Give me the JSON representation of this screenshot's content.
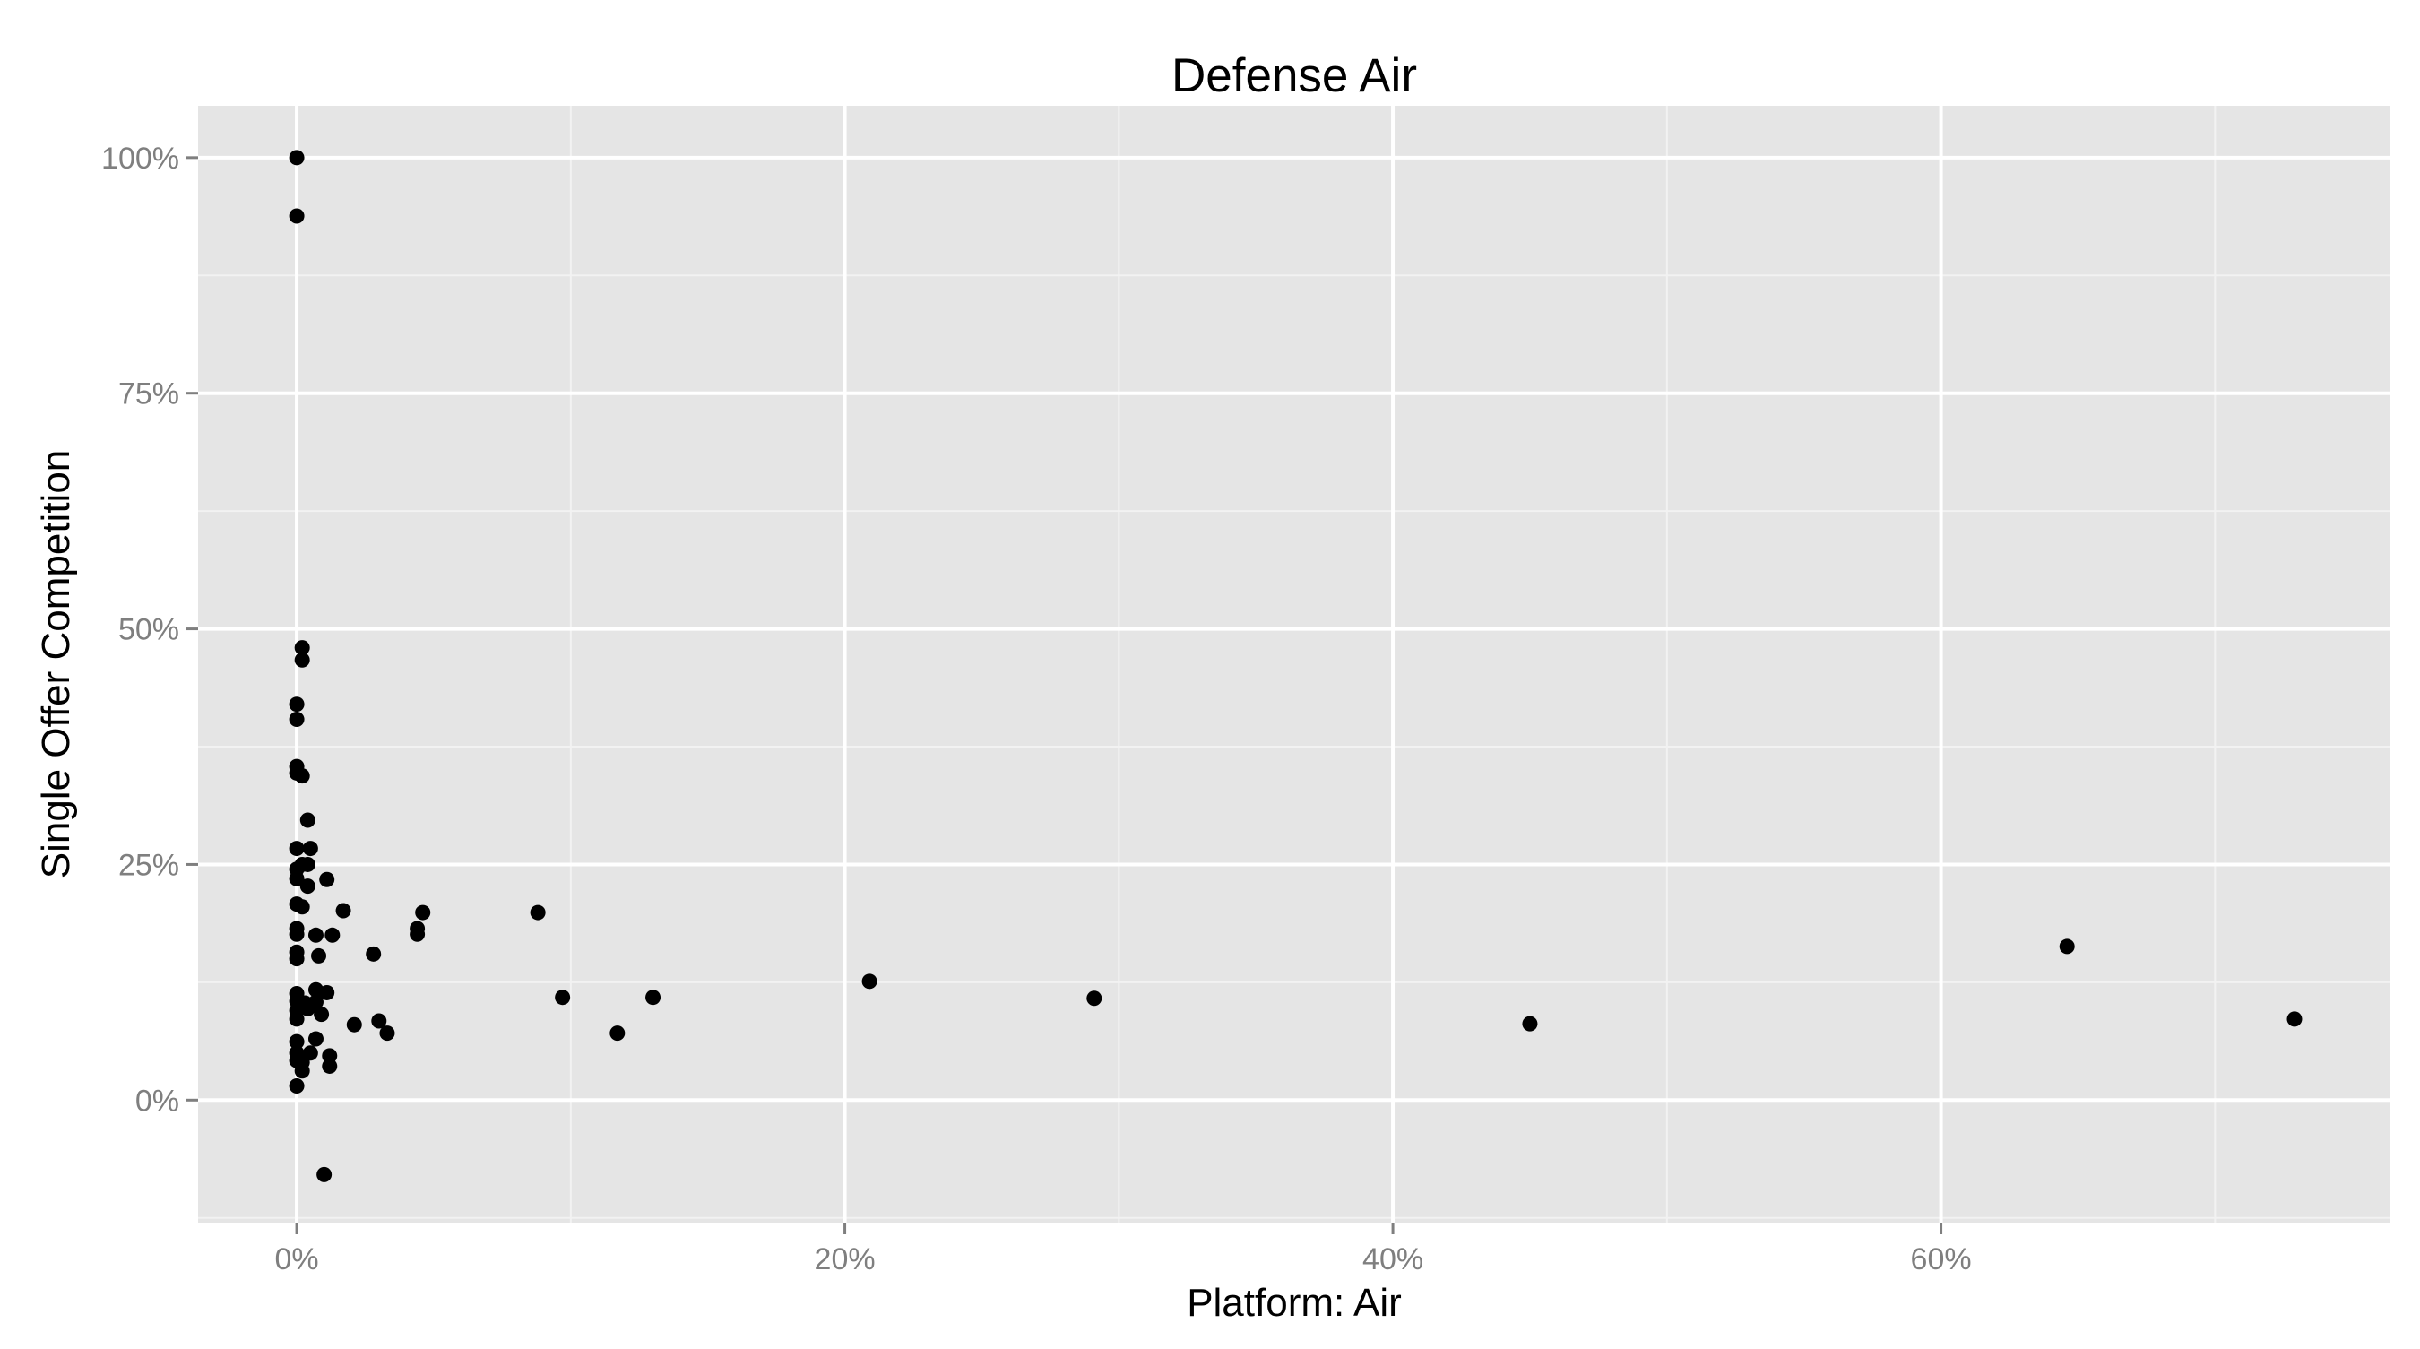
{
  "chart_data": {
    "type": "scatter",
    "title": "Defense Air",
    "xlabel": "Platform: Air",
    "ylabel": "Single Offer Competition",
    "xlim": [
      -0.036,
      0.764
    ],
    "ylim": [
      -0.13,
      1.055
    ],
    "x_ticks": [
      0,
      0.2,
      0.4,
      0.6
    ],
    "x_tick_labels": [
      "0%",
      "20%",
      "40%",
      "60%"
    ],
    "y_ticks": [
      0,
      0.25,
      0.5,
      0.75,
      1.0
    ],
    "y_tick_labels": [
      "0%",
      "25%",
      "50%",
      "75%",
      "100%"
    ],
    "grid": true,
    "panel_color": "#e5e5e5",
    "grid_major_color": "#ffffff",
    "grid_minor_color": "#f2f2f2",
    "point_color": "#000000",
    "points": [
      {
        "x": 0.0,
        "y": 1.0
      },
      {
        "x": 0.0,
        "y": 0.938
      },
      {
        "x": 0.002,
        "y": 0.48
      },
      {
        "x": 0.002,
        "y": 0.467
      },
      {
        "x": 0.0,
        "y": 0.42
      },
      {
        "x": 0.0,
        "y": 0.404
      },
      {
        "x": 0.0,
        "y": 0.354
      },
      {
        "x": 0.0,
        "y": 0.347
      },
      {
        "x": 0.002,
        "y": 0.344
      },
      {
        "x": 0.004,
        "y": 0.297
      },
      {
        "x": 0.0,
        "y": 0.267
      },
      {
        "x": 0.005,
        "y": 0.267
      },
      {
        "x": 0.002,
        "y": 0.25
      },
      {
        "x": 0.004,
        "y": 0.25
      },
      {
        "x": 0.0,
        "y": 0.245
      },
      {
        "x": 0.0,
        "y": 0.235
      },
      {
        "x": 0.011,
        "y": 0.234
      },
      {
        "x": 0.004,
        "y": 0.227
      },
      {
        "x": 0.0,
        "y": 0.208
      },
      {
        "x": 0.002,
        "y": 0.205
      },
      {
        "x": 0.017,
        "y": 0.201
      },
      {
        "x": 0.0,
        "y": 0.182
      },
      {
        "x": 0.0,
        "y": 0.176
      },
      {
        "x": 0.007,
        "y": 0.175
      },
      {
        "x": 0.013,
        "y": 0.175
      },
      {
        "x": 0.0,
        "y": 0.157
      },
      {
        "x": 0.008,
        "y": 0.153
      },
      {
        "x": 0.0,
        "y": 0.15
      },
      {
        "x": 0.028,
        "y": 0.155
      },
      {
        "x": 0.0,
        "y": 0.113
      },
      {
        "x": 0.007,
        "y": 0.117
      },
      {
        "x": 0.011,
        "y": 0.114
      },
      {
        "x": 0.0,
        "y": 0.105
      },
      {
        "x": 0.003,
        "y": 0.103
      },
      {
        "x": 0.007,
        "y": 0.104
      },
      {
        "x": 0.0,
        "y": 0.095
      },
      {
        "x": 0.004,
        "y": 0.097
      },
      {
        "x": 0.009,
        "y": 0.091
      },
      {
        "x": 0.0,
        "y": 0.086
      },
      {
        "x": 0.021,
        "y": 0.08
      },
      {
        "x": 0.03,
        "y": 0.084
      },
      {
        "x": 0.033,
        "y": 0.071
      },
      {
        "x": 0.0,
        "y": 0.062
      },
      {
        "x": 0.007,
        "y": 0.065
      },
      {
        "x": 0.0,
        "y": 0.05
      },
      {
        "x": 0.005,
        "y": 0.05
      },
      {
        "x": 0.012,
        "y": 0.047
      },
      {
        "x": 0.0,
        "y": 0.042
      },
      {
        "x": 0.002,
        "y": 0.04
      },
      {
        "x": 0.012,
        "y": 0.036
      },
      {
        "x": 0.002,
        "y": 0.031
      },
      {
        "x": 0.0,
        "y": 0.015
      },
      {
        "x": 0.01,
        "y": -0.079
      },
      {
        "x": 0.044,
        "y": 0.182
      },
      {
        "x": 0.044,
        "y": 0.176
      },
      {
        "x": 0.046,
        "y": 0.199
      },
      {
        "x": 0.088,
        "y": 0.199
      },
      {
        "x": 0.097,
        "y": 0.109
      },
      {
        "x": 0.117,
        "y": 0.071
      },
      {
        "x": 0.13,
        "y": 0.109
      },
      {
        "x": 0.209,
        "y": 0.126
      },
      {
        "x": 0.291,
        "y": 0.108
      },
      {
        "x": 0.45,
        "y": 0.081
      },
      {
        "x": 0.646,
        "y": 0.163
      },
      {
        "x": 0.729,
        "y": 0.086
      }
    ]
  }
}
